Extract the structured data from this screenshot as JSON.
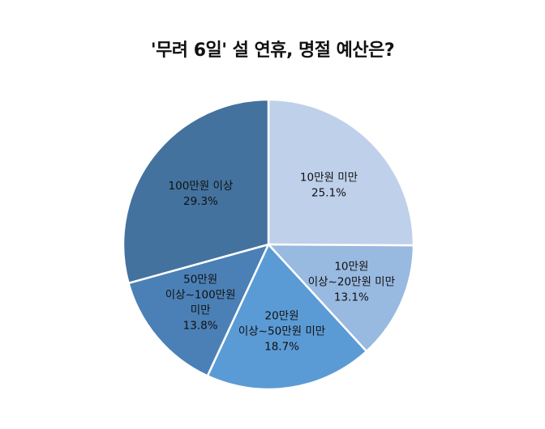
{
  "chart_data": {
    "type": "pie",
    "title": "'무려 6일' 설 연휴, 명절 예산은?",
    "slices": [
      {
        "label": "10만원 미만",
        "label_lines": [
          "10만원 미만"
        ],
        "value": 25.1,
        "value_label": "25.1%",
        "color": "#bed0ea"
      },
      {
        "label": "10만원 이상~20만원 미만",
        "label_lines": [
          "10만원",
          "이상~20만원 미만"
        ],
        "value": 13.1,
        "value_label": "13.1%",
        "color": "#98b9e0"
      },
      {
        "label": "20만원 이상~50만원 미만",
        "label_lines": [
          "20만원",
          "이상~50만원 미만"
        ],
        "value": 18.7,
        "value_label": "18.7%",
        "color": "#5b9bd5"
      },
      {
        "label": "50만원 이상~100만원 미만",
        "label_lines": [
          "50만원",
          "이상~100만원",
          "미만"
        ],
        "value": 13.8,
        "value_label": "13.8%",
        "color": "#4a80b6"
      },
      {
        "label": "100만원 이상",
        "label_lines": [
          "100만원 이상"
        ],
        "value": 29.3,
        "value_label": "29.3%",
        "color": "#43729e"
      }
    ]
  }
}
